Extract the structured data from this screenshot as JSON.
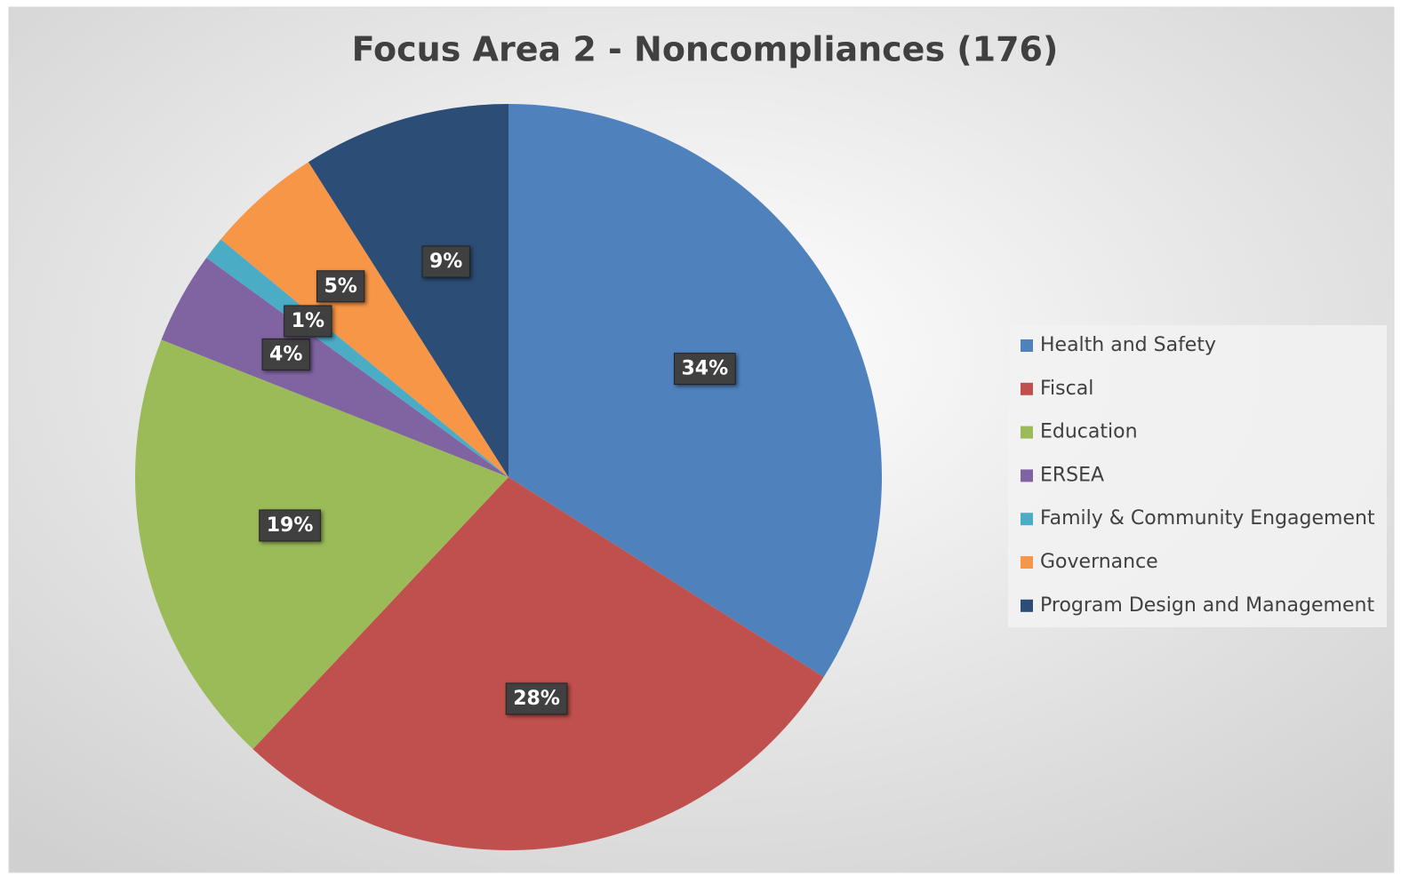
{
  "chart_data": {
    "type": "pie",
    "title": "Focus Area 2 - Noncompliances (176)",
    "categories": [
      "Health and Safety",
      "Fiscal",
      "Education",
      "ERSEA",
      "Family & Community Engagement",
      "Governance",
      "Program Design and Management"
    ],
    "values": [
      34,
      28,
      19,
      4,
      1,
      5,
      9
    ],
    "value_labels": [
      "34%",
      "28%",
      "19%",
      "4%",
      "1%",
      "5%",
      "9%"
    ],
    "colors": [
      "#4f81bd",
      "#c0504d",
      "#9bbb59",
      "#8064a2",
      "#4bacc6",
      "#f79646",
      "#2c4d75"
    ],
    "legend": "right"
  }
}
